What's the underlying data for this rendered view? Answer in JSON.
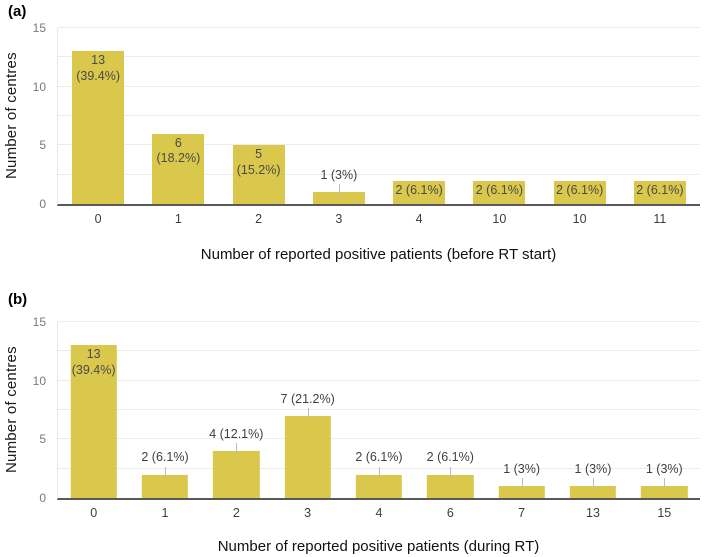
{
  "page": {
    "background": "#ffffff",
    "bar_color": "#d9c84b",
    "axis_color": "#595959",
    "gridline_color": "#ececec"
  },
  "chart_data": [
    {
      "type": "bar",
      "panel_label": "(a)",
      "xlabel": "Number of reported positive patients (before RT start)",
      "ylabel": "Number of centres",
      "categories": [
        "0",
        "1",
        "2",
        "3",
        "4",
        "10",
        "10",
        "11"
      ],
      "values": [
        13,
        6,
        5,
        1,
        2,
        2,
        2,
        2
      ],
      "labels": [
        [
          "13",
          "(39.4%)"
        ],
        [
          "6",
          "(18.2%)"
        ],
        [
          "5",
          "(15.2%)"
        ],
        [
          "1 (3%)"
        ],
        [
          "2 (6.1%)"
        ],
        [
          "2 (6.1%)"
        ],
        [
          "2 (6.1%)"
        ],
        [
          "2 (6.1%)"
        ]
      ],
      "label_positions": [
        "inside",
        "inside",
        "inside",
        "above",
        "inside",
        "inside",
        "inside",
        "inside"
      ],
      "ylim": [
        0,
        15
      ],
      "yticks": [
        0,
        5,
        10,
        15
      ],
      "grid_step": 2.5,
      "grid": true,
      "legend": false,
      "bar_color": "#d9c84b"
    },
    {
      "type": "bar",
      "panel_label": "(b)",
      "xlabel": "Number of reported positive patients (during RT)",
      "ylabel": "Number of centres",
      "categories": [
        "0",
        "1",
        "2",
        "3",
        "4",
        "6",
        "7",
        "13",
        "15"
      ],
      "values": [
        13,
        2,
        4,
        7,
        2,
        2,
        1,
        1,
        1
      ],
      "labels": [
        [
          "13",
          "(39.4%)"
        ],
        [
          "2 (6.1%)"
        ],
        [
          "4 (12.1%)"
        ],
        [
          "7 (21.2%)"
        ],
        [
          "2 (6.1%)"
        ],
        [
          "2 (6.1%)"
        ],
        [
          "1 (3%)"
        ],
        [
          "1 (3%)"
        ],
        [
          "1 (3%)"
        ]
      ],
      "label_positions": [
        "inside",
        "above",
        "above",
        "above",
        "above",
        "above",
        "above",
        "above",
        "above"
      ],
      "ylim": [
        0,
        15
      ],
      "yticks": [
        0,
        5,
        10,
        15
      ],
      "grid_step": 2.5,
      "grid": true,
      "legend": false,
      "bar_color": "#d9c84b"
    }
  ]
}
